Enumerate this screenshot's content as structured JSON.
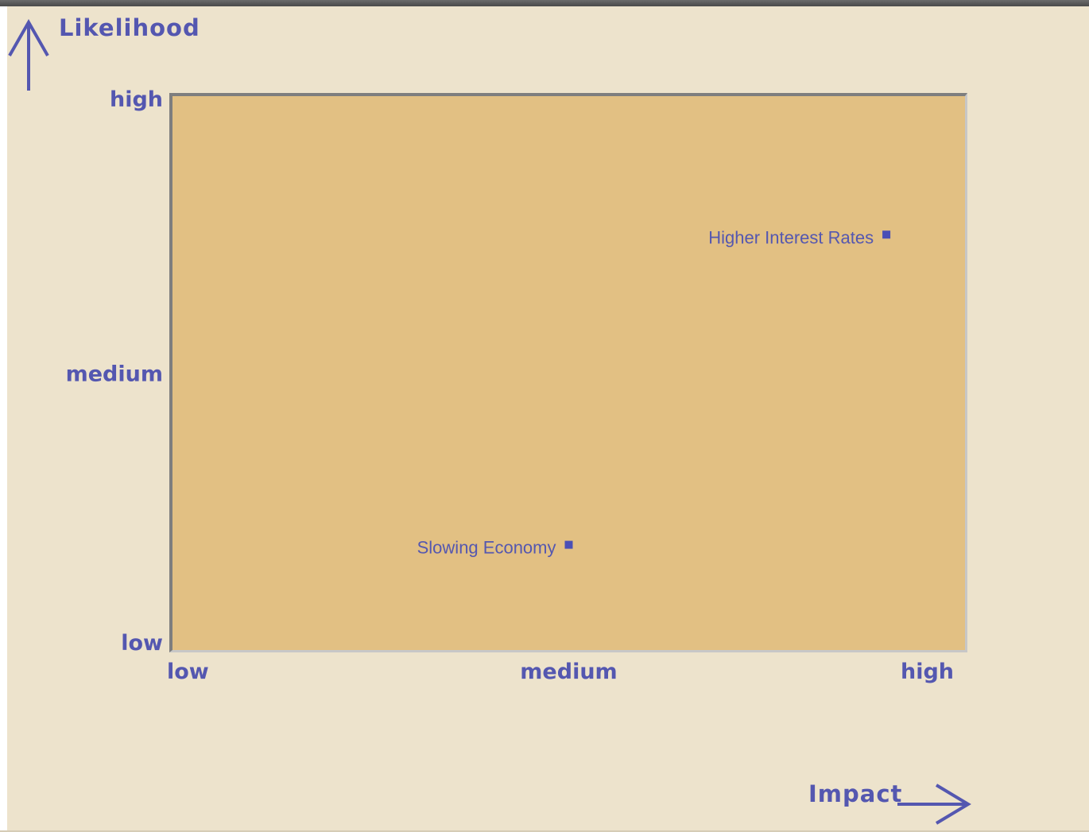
{
  "chart_data": {
    "type": "scatter",
    "xlabel": "Impact",
    "ylabel": "Likelihood",
    "x_ticks": [
      "low",
      "medium",
      "high"
    ],
    "y_ticks": [
      "low",
      "medium",
      "high"
    ],
    "xlim": [
      0,
      2
    ],
    "ylim": [
      0,
      2
    ],
    "grid": false,
    "points": [
      {
        "label": "Higher Interest Rates",
        "x": 1.8,
        "y": 1.5
      },
      {
        "label": "Slowing Economy",
        "x": 1.0,
        "y": 0.38
      }
    ]
  },
  "colors": {
    "text": "#5457b0",
    "marker": "#4a4fb6",
    "plot_background": "#e2c083",
    "page_background": "#ede3cc"
  },
  "icons": {
    "y_axis_arrow": "arrow-up-icon",
    "x_axis_arrow": "arrow-right-icon"
  }
}
